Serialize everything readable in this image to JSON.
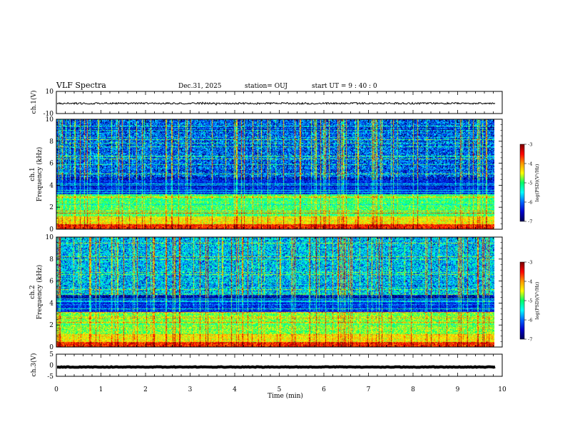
{
  "header": {
    "title": "VLF Spectra",
    "date": "Dec.31, 2025",
    "station": "station= OUJ",
    "start": "start  UT  =   9 : 40 : 0"
  },
  "chart_data": [
    {
      "type": "line",
      "panel": "ch1-waveform",
      "ylabel": "ch.1(V)",
      "ylim": [
        -10,
        10
      ],
      "yticks": [
        10,
        -10
      ],
      "xlim": [
        0,
        10
      ],
      "series": [
        {
          "color": "#000000",
          "level": -0.8,
          "noise_amplitude": 0.8
        }
      ]
    },
    {
      "type": "heatmap",
      "panel": "ch1-spectrogram",
      "ylabel_line1": "ch.1",
      "ylabel_line2": "Frequency (kHz)",
      "ylim": [
        0,
        10
      ],
      "yticks": [
        0,
        2,
        4,
        6,
        8,
        10
      ],
      "xlim": [
        0,
        9.85
      ],
      "colorbar": {
        "label": "log(PSD)(V²/Hz)",
        "range": [
          -7,
          -3
        ],
        "ticks": [
          "-3",
          "-4",
          "-5",
          "-6",
          "-7"
        ],
        "colors": [
          "#7a0000",
          "#ff0000",
          "#ff9900",
          "#ffff00",
          "#00ff66",
          "#00ffff",
          "#0066ff",
          "#0000cc",
          "#000055"
        ]
      }
    },
    {
      "type": "heatmap",
      "panel": "ch2-spectrogram",
      "ylabel_line1": "ch.2",
      "ylabel_line2": "Frequency (kHz)",
      "ylim": [
        0,
        10
      ],
      "yticks": [
        0,
        2,
        4,
        6,
        8,
        10
      ],
      "xlim": [
        0,
        9.85
      ],
      "colorbar": {
        "label": "log(PSD)(V²/Hz)",
        "range": [
          -7,
          -3
        ],
        "ticks": [
          "-3",
          "-4",
          "-5",
          "-6",
          "-7"
        ],
        "colors": [
          "#7a0000",
          "#ff0000",
          "#ff9900",
          "#ffff00",
          "#00ff66",
          "#00ffff",
          "#0066ff",
          "#0000cc",
          "#000055"
        ]
      }
    },
    {
      "type": "line",
      "panel": "ch3-waveform",
      "ylabel": "ch.3(V)",
      "ylim": [
        -5,
        5
      ],
      "yticks": [
        5,
        0,
        -5
      ],
      "xlim": [
        0,
        10
      ],
      "series": [
        {
          "color": "#000000",
          "level": -0.8,
          "noise_amplitude": 0.15
        }
      ]
    }
  ],
  "xaxis": {
    "label": "Time (min)",
    "ticks": [
      "0",
      "1",
      "2",
      "3",
      "4",
      "5",
      "6",
      "7",
      "8",
      "9",
      "10"
    ]
  }
}
